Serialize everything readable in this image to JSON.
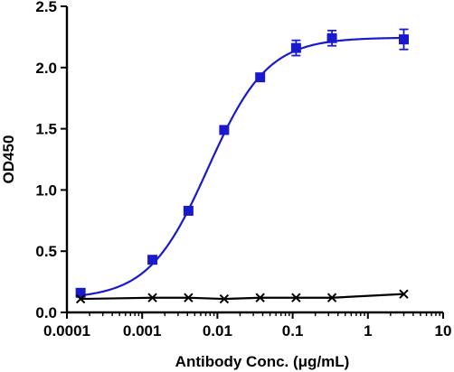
{
  "chart_data": {
    "type": "scatter",
    "title": "",
    "xlabel": "Antibody Conc. (μg/mL)",
    "ylabel": "OD450",
    "x_scale": "log",
    "xlim": [
      0.0001,
      10
    ],
    "ylim": [
      0,
      2.5
    ],
    "x_ticks": [
      0.0001,
      0.001,
      0.01,
      0.1,
      1,
      10
    ],
    "x_tick_labels": [
      "0.0001",
      "0.001",
      "0.01",
      "0.1",
      "1",
      "10"
    ],
    "y_ticks": [
      0,
      0.5,
      1,
      1.5,
      2,
      2.5
    ],
    "y_tick_labels": [
      "0.0",
      "0.5",
      "1.0",
      "1.5",
      "2.0",
      "2.5"
    ],
    "grid": false,
    "series": [
      {
        "marker": "square",
        "color": "#1a1acc",
        "fit": "sigmoidal curve",
        "x": [
          0.000152,
          0.00137,
          0.00412,
          0.0123,
          0.037,
          0.111,
          0.333,
          3
        ],
        "y": [
          0.16,
          0.43,
          0.83,
          1.49,
          1.92,
          2.16,
          2.24,
          2.23
        ],
        "y_error": [
          0,
          0,
          0,
          0,
          0,
          0.04,
          0.04,
          0.06
        ]
      },
      {
        "marker": "cross",
        "color": "#000000",
        "x": [
          0.000152,
          0.00137,
          0.00412,
          0.0123,
          0.037,
          0.111,
          0.333,
          3
        ],
        "y": [
          0.11,
          0.12,
          0.12,
          0.11,
          0.12,
          0.12,
          0.12,
          0.15
        ]
      }
    ]
  }
}
